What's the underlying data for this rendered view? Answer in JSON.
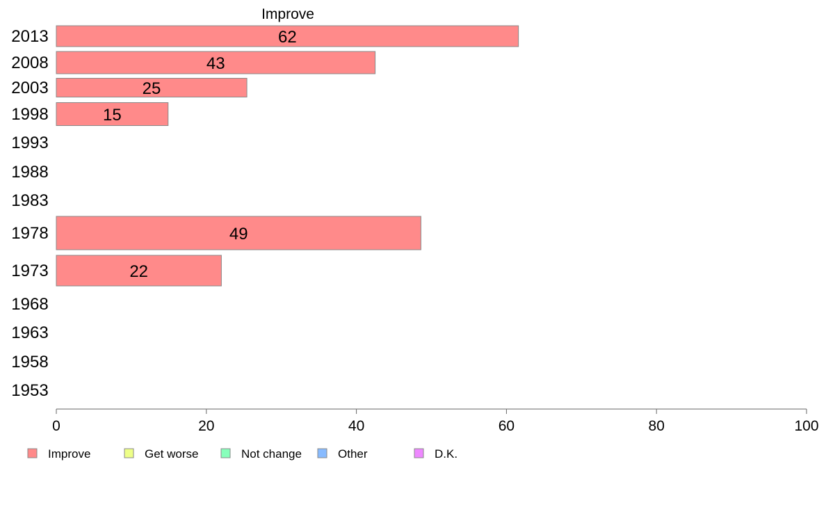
{
  "chart_data": {
    "type": "bar",
    "orientation": "horizontal",
    "title": "Improve",
    "xlabel": "",
    "ylabel": "",
    "xlim": [
      0,
      100
    ],
    "x_ticks": [
      0,
      20,
      40,
      60,
      80,
      100
    ],
    "categories": [
      "2013",
      "2008",
      "2003",
      "1998",
      "1993",
      "1988",
      "1983",
      "1978",
      "1973",
      "1968",
      "1963",
      "1958",
      "1953"
    ],
    "series": [
      {
        "name": "Improve",
        "color": "#ff8a8a",
        "values": [
          61.6,
          42.5,
          25.4,
          14.9,
          null,
          null,
          null,
          48.6,
          22.0,
          null,
          null,
          null,
          null
        ],
        "labels": [
          "62",
          "43",
          "25",
          "15",
          "",
          "",
          "",
          "49",
          "22",
          "",
          "",
          "",
          ""
        ]
      }
    ],
    "legend": {
      "position": "bottom",
      "items": [
        {
          "label": "Improve",
          "color": "#ff8a8a"
        },
        {
          "label": "Get worse",
          "color": "#eeff88"
        },
        {
          "label": "Not change",
          "color": "#88ffbb"
        },
        {
          "label": "Other",
          "color": "#88bbff"
        },
        {
          "label": "D.K.",
          "color": "#ee88ff"
        }
      ]
    },
    "grid": false
  }
}
